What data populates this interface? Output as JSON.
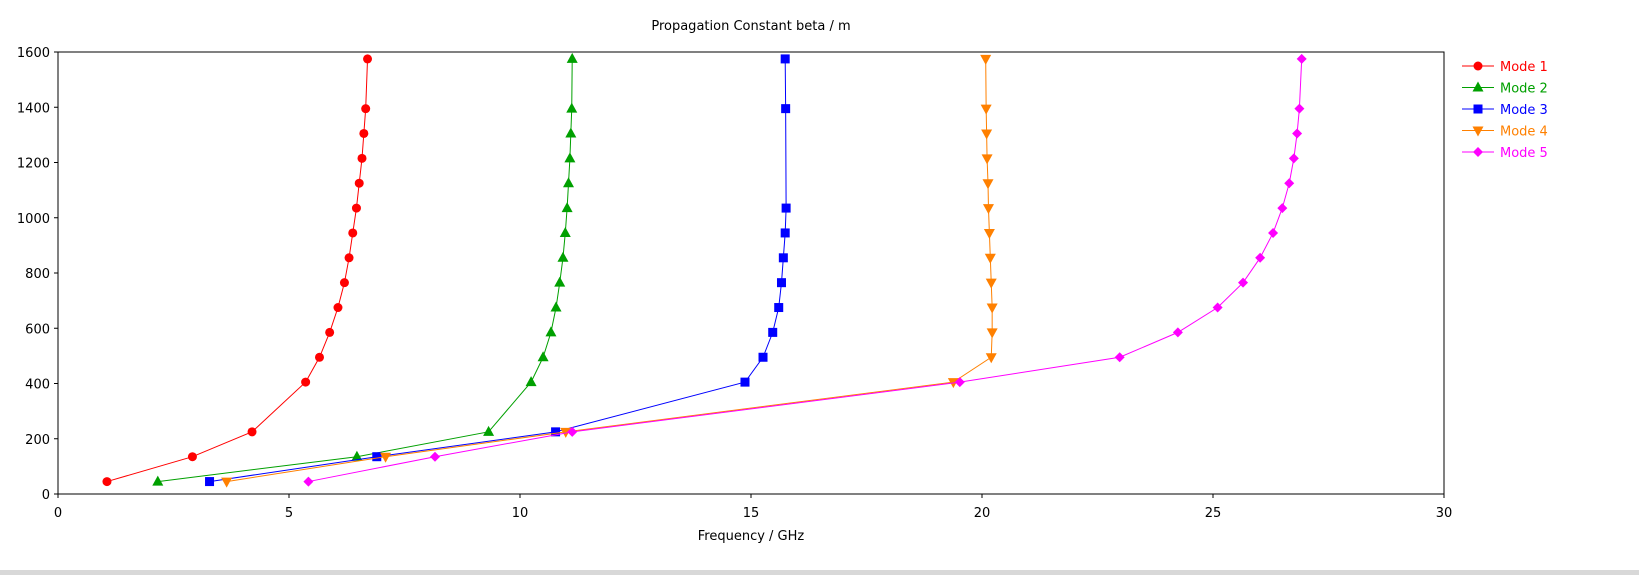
{
  "chart_data": {
    "type": "line",
    "title": "Propagation Constant beta / m",
    "xlabel": "Frequency / GHz",
    "ylabel": "",
    "xlim": [
      0,
      30
    ],
    "ylim": [
      0,
      1600
    ],
    "xticks": [
      0,
      5,
      10,
      15,
      20,
      25,
      30
    ],
    "yticks": [
      0,
      200,
      400,
      600,
      800,
      1000,
      1200,
      1400,
      1600
    ],
    "grid": true,
    "legend_position": "right",
    "series": [
      {
        "name": "Mode 1",
        "color": "#ff0000",
        "marker": "circle",
        "x": [
          1.06,
          2.91,
          4.2,
          5.36,
          5.66,
          5.88,
          6.06,
          6.2,
          6.3,
          6.38,
          6.46,
          6.52,
          6.58,
          6.62,
          6.66,
          6.7
        ],
        "y": [
          45,
          135,
          225,
          405,
          495,
          585,
          675,
          765,
          855,
          945,
          1035,
          1125,
          1215,
          1305,
          1395,
          1575
        ]
      },
      {
        "name": "Mode 2",
        "color": "#00a000",
        "marker": "triangle-up",
        "x": [
          2.16,
          6.47,
          9.32,
          10.24,
          10.5,
          10.67,
          10.78,
          10.86,
          10.93,
          10.98,
          11.02,
          11.05,
          11.08,
          11.1,
          11.12,
          11.13
        ],
        "y": [
          45,
          135,
          225,
          405,
          495,
          585,
          675,
          765,
          855,
          945,
          1035,
          1125,
          1215,
          1305,
          1395,
          1575
        ]
      },
      {
        "name": "Mode 3",
        "color": "#0000ff",
        "marker": "square",
        "x": [
          3.28,
          6.9,
          10.77,
          14.87,
          15.26,
          15.47,
          15.6,
          15.66,
          15.7,
          15.74,
          15.76,
          15.75,
          15.74
        ],
        "y": [
          45,
          135,
          225,
          405,
          495,
          585,
          675,
          765,
          855,
          945,
          1035,
          1395,
          1575
        ]
      },
      {
        "name": "Mode 4",
        "color": "#ff8000",
        "marker": "triangle-down",
        "x": [
          3.65,
          7.09,
          10.99,
          19.38,
          20.2,
          20.22,
          20.22,
          20.2,
          20.18,
          20.16,
          20.14,
          20.13,
          20.11,
          20.1,
          20.09,
          20.08
        ],
        "y": [
          45,
          135,
          225,
          405,
          495,
          585,
          675,
          765,
          855,
          945,
          1035,
          1125,
          1215,
          1305,
          1395,
          1575
        ]
      },
      {
        "name": "Mode 5",
        "color": "#ff00ff",
        "marker": "diamond",
        "x": [
          5.42,
          8.16,
          11.13,
          19.52,
          22.98,
          24.24,
          25.1,
          25.65,
          26.02,
          26.3,
          26.5,
          26.65,
          26.75,
          26.82,
          26.87,
          26.92
        ],
        "y": [
          45,
          135,
          225,
          405,
          495,
          585,
          675,
          765,
          855,
          945,
          1035,
          1125,
          1215,
          1305,
          1395,
          1575
        ]
      }
    ]
  }
}
